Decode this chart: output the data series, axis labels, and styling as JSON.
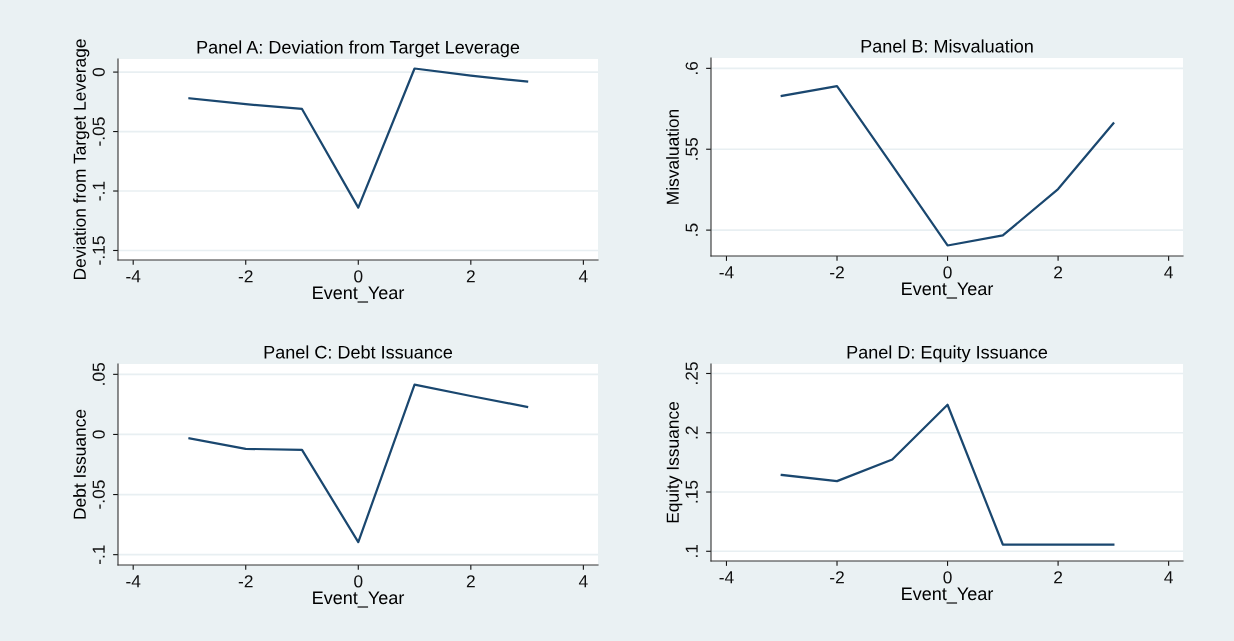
{
  "chart_data": [
    {
      "type": "line",
      "title": "Panel A: Deviation from Target Leverage",
      "xlabel": "Event_Year",
      "ylabel": "Deviation from Target Leverage",
      "x": [
        -3,
        -2,
        -1,
        0,
        1,
        2,
        3
      ],
      "series": [
        {
          "color": "#1a476f",
          "values": [
            -0.022,
            -0.027,
            -0.031,
            -0.114,
            0.003,
            -0.003,
            -0.008
          ]
        }
      ],
      "xlim": [
        -4.27,
        4.26
      ],
      "xticks": [
        -4,
        -2,
        0,
        2,
        4
      ],
      "ylim": [
        -0.158,
        0.011
      ],
      "yticks": [
        {
          "value": -0.15,
          "label": "-.15"
        },
        {
          "value": -0.1,
          "label": "-.1"
        },
        {
          "value": -0.05,
          "label": "-.05"
        },
        0
      ],
      "grid": "y",
      "marker": "none",
      "line_style": "solid"
    },
    {
      "type": "line",
      "title": "Panel B: Misvaluation",
      "xlabel": "Event_Year",
      "ylabel": "Misvaluation",
      "x": [
        -3,
        -2,
        -1,
        0,
        1,
        2,
        3
      ],
      "series": [
        {
          "color": "#1a476f",
          "values": [
            0.583,
            0.589,
            0.54,
            0.4905,
            0.4967,
            0.5254,
            0.566
          ]
        }
      ],
      "xlim": [
        -4.28,
        4.26
      ],
      "xticks": [
        -4,
        -2,
        0,
        2,
        4
      ],
      "ylim": [
        0.484,
        0.6064
      ],
      "yticks": [
        {
          "value": 0.5,
          "label": ".5"
        },
        {
          "value": 0.55,
          "label": ".55"
        },
        {
          "value": 0.6,
          "label": ".6"
        }
      ],
      "grid": "y",
      "marker": "none",
      "line_style": "solid"
    },
    {
      "type": "line",
      "title": "Panel C: Debt Issuance",
      "xlabel": "Event_Year",
      "ylabel": "Debt Issuance",
      "x": [
        -3,
        -2,
        -1,
        0,
        1,
        2,
        3
      ],
      "series": [
        {
          "color": "#1a476f",
          "values": [
            -0.0033,
            -0.012,
            -0.0128,
            -0.0896,
            0.0414,
            0.032,
            0.0229
          ]
        }
      ],
      "xlim": [
        -4.27,
        4.26
      ],
      "xticks": [
        -4,
        -2,
        0,
        2,
        4
      ],
      "ylim": [
        -0.1086,
        0.0586
      ],
      "yticks": [
        {
          "value": -0.1,
          "label": "-.1"
        },
        {
          "value": -0.05,
          "label": "-.05"
        },
        0,
        {
          "value": 0.05,
          "label": ".05"
        }
      ],
      "grid": "y",
      "marker": "none",
      "line_style": "solid"
    },
    {
      "type": "line",
      "title": "Panel D: Equity Issuance",
      "xlabel": "Event_Year",
      "ylabel": "Equity Issuance",
      "x": [
        -3,
        -2,
        -1,
        0,
        1,
        2,
        3
      ],
      "series": [
        {
          "color": "#1a476f",
          "values": [
            0.1644,
            0.1592,
            0.1774,
            0.2236,
            0.1057,
            0.1057,
            0.1057
          ]
        }
      ],
      "xlim": [
        -4.28,
        4.26
      ],
      "xticks": [
        -4,
        -2,
        0,
        2,
        4
      ],
      "ylim": [
        0.0918,
        0.258
      ],
      "yticks": [
        {
          "value": 0.1,
          "label": ".1"
        },
        {
          "value": 0.15,
          "label": ".15"
        },
        {
          "value": 0.2,
          "label": ".2"
        },
        {
          "value": 0.25,
          "label": ".25"
        }
      ],
      "grid": "y",
      "marker": "none",
      "line_style": "solid"
    }
  ]
}
